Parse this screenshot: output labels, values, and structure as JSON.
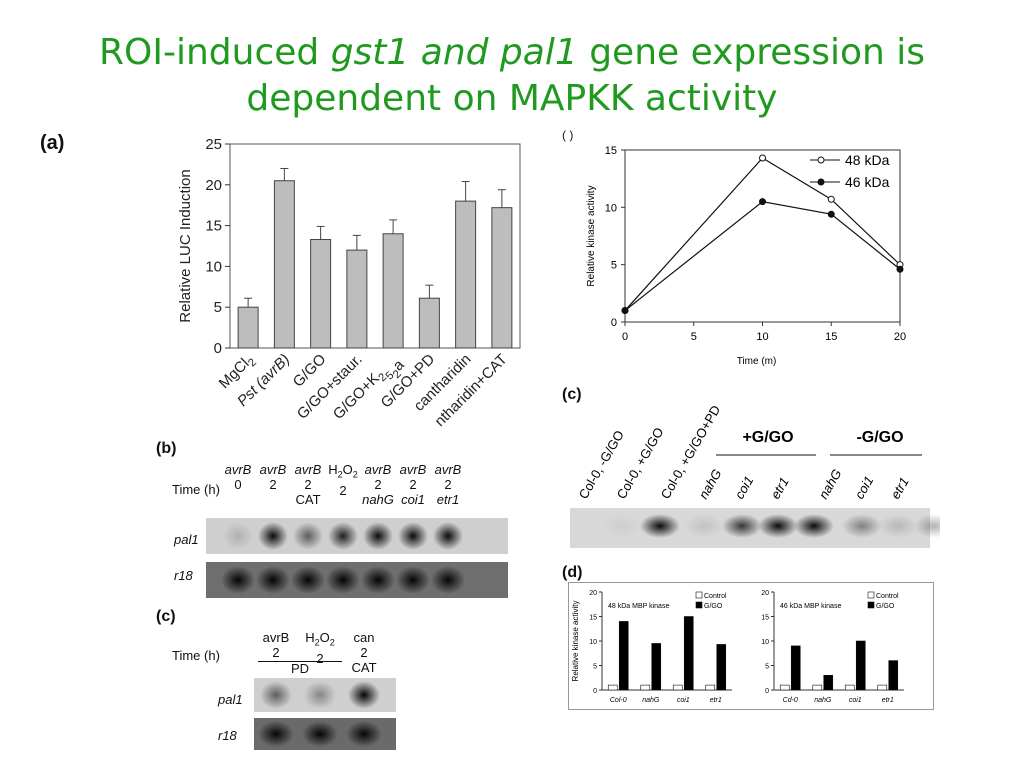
{
  "title": {
    "line1_pre": "ROI-induced ",
    "line1_italic": "gst1 and pal1",
    "line1_post": " gene expression is",
    "line2": "dependent on MAPKK activity"
  },
  "panel_labels": {
    "a": "(a)",
    "b": "(b)",
    "c_top": "(c)",
    "c_bottom": "(c)",
    "d": "(d)",
    "partial": "( )"
  },
  "chart_data": [
    {
      "type": "bar",
      "panel": "a",
      "ylabel": "Relative LUC Induction",
      "ylim": [
        0,
        25
      ],
      "yticks": [
        "0",
        "5",
        "10",
        "15",
        "20",
        "25"
      ],
      "categories": [
        "MgCl2",
        "Pst (avrB)",
        "G/GO",
        "G/GO+staur.",
        "G/GO+K252a",
        "G/GO+PD",
        "cantharidin",
        "ntharidin+CAT"
      ],
      "values": [
        5,
        20.5,
        13.3,
        12,
        14,
        6.1,
        18,
        17.2
      ],
      "errors": [
        1.1,
        1.5,
        1.6,
        1.8,
        1.7,
        1.6,
        2.4,
        2.2
      ],
      "color": "#bdbdbd"
    },
    {
      "type": "line",
      "panel": "c-top",
      "xlabel": "Time (m)",
      "ylabel": "Relative kinase activity",
      "xlim": [
        0,
        20
      ],
      "ylim": [
        0,
        15
      ],
      "xticks": [
        "0",
        "5",
        "10",
        "15",
        "20"
      ],
      "yticks": [
        "0",
        "5",
        "10",
        "15"
      ],
      "legend": "top-right",
      "series": [
        {
          "name": "48 kDa",
          "x": [
            0,
            10,
            15,
            20
          ],
          "values": [
            1,
            14.3,
            10.7,
            5
          ],
          "marker": "open-circle"
        },
        {
          "name": "46 kDa",
          "x": [
            0,
            10,
            15,
            20
          ],
          "values": [
            1,
            10.5,
            9.4,
            4.6
          ],
          "marker": "filled-circle"
        }
      ]
    },
    {
      "type": "bar",
      "panel": "d-left",
      "title": "48 kDa MBP kinase",
      "ylabel": "Relative kinase activity",
      "ylim": [
        0,
        20
      ],
      "yticks": [
        "0",
        "5",
        "10",
        "15",
        "20"
      ],
      "categories": [
        "Col-0",
        "nahG",
        "coi1",
        "etr1"
      ],
      "legend": "top-right",
      "series": [
        {
          "name": "Control",
          "values": [
            1,
            1,
            1,
            1
          ],
          "color": "#ffffff"
        },
        {
          "name": "G/GO",
          "values": [
            14,
            9.5,
            15,
            9.3
          ],
          "color": "#000000"
        }
      ]
    },
    {
      "type": "bar",
      "panel": "d-right",
      "title": "46 kDa MBP kinase",
      "ylim": [
        0,
        20
      ],
      "yticks": [
        "0",
        "5",
        "10",
        "15",
        "20"
      ],
      "categories": [
        "Cd-0",
        "nahG",
        "coi1",
        "etr1"
      ],
      "legend": "top-right",
      "series": [
        {
          "name": "Control",
          "values": [
            1,
            1,
            1,
            1
          ],
          "color": "#ffffff"
        },
        {
          "name": "G/GO",
          "values": [
            9,
            3,
            10,
            6
          ],
          "color": "#000000"
        }
      ]
    }
  ],
  "blot_b": {
    "time_label": "Time (h)",
    "columns": [
      {
        "treatment": "avrB",
        "time": "0",
        "extra": ""
      },
      {
        "treatment": "avrB",
        "time": "2",
        "extra": ""
      },
      {
        "treatment": "avrB",
        "time": "2",
        "extra": "CAT"
      },
      {
        "treatment": "H2O2",
        "time": "2",
        "extra": ""
      },
      {
        "treatment": "avrB",
        "time": "2",
        "extra": "nahG"
      },
      {
        "treatment": "avrB",
        "time": "2",
        "extra": "coi1"
      },
      {
        "treatment": "avrB",
        "time": "2",
        "extra": "etr1"
      }
    ],
    "rows": [
      "pal1",
      "r18"
    ],
    "pal1_intensity": [
      0.15,
      0.95,
      0.55,
      0.85,
      0.95,
      0.95,
      0.95
    ]
  },
  "blot_c_bottom": {
    "time_label": "Time (h)",
    "columns": [
      {
        "treatment": "avrB",
        "time": "2"
      },
      {
        "treatment": "H2O2",
        "time": "2"
      },
      {
        "treatment": "can",
        "time": "2",
        "extra": "CAT"
      }
    ],
    "group_label": "PD",
    "rows": [
      "pal1",
      "r18"
    ]
  },
  "blot_c_top": {
    "lanes": [
      "Col-0, -G/GO",
      "Col-0, +G/GO",
      "Col-0, +G/GO+PD",
      "nahG",
      "coi1",
      "etr1",
      "nahG",
      "coi1",
      "etr1"
    ],
    "group_plus": "+G/GO",
    "group_minus": "-G/GO",
    "intensity": [
      0.05,
      0.95,
      0.1,
      0.75,
      0.95,
      0.95,
      0.4,
      0.15,
      0.3
    ]
  }
}
